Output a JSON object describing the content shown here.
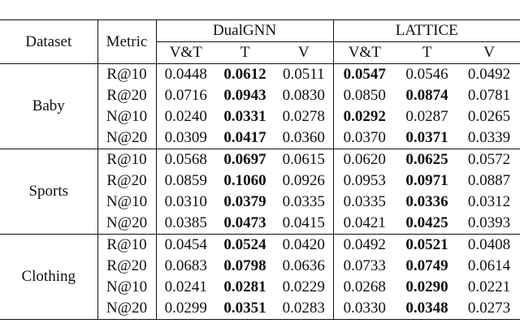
{
  "table": {
    "header": {
      "dataset": "Dataset",
      "metric": "Metric",
      "models": [
        {
          "name": "DualGNN",
          "columns": [
            "V&T",
            "T",
            "V"
          ]
        },
        {
          "name": "LATTICE",
          "columns": [
            "V&T",
            "T",
            "V"
          ]
        }
      ]
    },
    "groups": [
      {
        "dataset": "Baby",
        "rows": [
          {
            "metric": "R@10",
            "values": [
              "0.0448",
              "0.0612",
              "0.0511",
              "0.0547",
              "0.0546",
              "0.0492"
            ],
            "bold": [
              1,
              3
            ]
          },
          {
            "metric": "R@20",
            "values": [
              "0.0716",
              "0.0943",
              "0.0830",
              "0.0850",
              "0.0874",
              "0.0781"
            ],
            "bold": [
              1,
              4
            ]
          },
          {
            "metric": "N@10",
            "values": [
              "0.0240",
              "0.0331",
              "0.0278",
              "0.0292",
              "0.0287",
              "0.0265"
            ],
            "bold": [
              1,
              3
            ]
          },
          {
            "metric": "N@20",
            "values": [
              "0.0309",
              "0.0417",
              "0.0360",
              "0.0370",
              "0.0371",
              "0.0339"
            ],
            "bold": [
              1,
              4
            ]
          }
        ]
      },
      {
        "dataset": "Sports",
        "rows": [
          {
            "metric": "R@10",
            "values": [
              "0.0568",
              "0.0697",
              "0.0615",
              "0.0620",
              "0.0625",
              "0.0572"
            ],
            "bold": [
              1,
              4
            ]
          },
          {
            "metric": "R@20",
            "values": [
              "0.0859",
              "0.1060",
              "0.0926",
              "0.0953",
              "0.0971",
              "0.0887"
            ],
            "bold": [
              1,
              4
            ]
          },
          {
            "metric": "N@10",
            "values": [
              "0.0310",
              "0.0379",
              "0.0335",
              "0.0335",
              "0.0336",
              "0.0312"
            ],
            "bold": [
              1,
              4
            ]
          },
          {
            "metric": "N@20",
            "values": [
              "0.0385",
              "0.0473",
              "0.0415",
              "0.0421",
              "0.0425",
              "0.0393"
            ],
            "bold": [
              1,
              4
            ]
          }
        ]
      },
      {
        "dataset": "Clothing",
        "rows": [
          {
            "metric": "R@10",
            "values": [
              "0.0454",
              "0.0524",
              "0.0420",
              "0.0492",
              "0.0521",
              "0.0408"
            ],
            "bold": [
              1,
              4
            ]
          },
          {
            "metric": "R@20",
            "values": [
              "0.0683",
              "0.0798",
              "0.0636",
              "0.0733",
              "0.0749",
              "0.0614"
            ],
            "bold": [
              1,
              4
            ]
          },
          {
            "metric": "N@10",
            "values": [
              "0.0241",
              "0.0281",
              "0.0229",
              "0.0268",
              "0.0290",
              "0.0221"
            ],
            "bold": [
              1,
              4
            ]
          },
          {
            "metric": "N@20",
            "values": [
              "0.0299",
              "0.0351",
              "0.0283",
              "0.0330",
              "0.0348",
              "0.0273"
            ],
            "bold": [
              1,
              4
            ]
          }
        ]
      }
    ]
  }
}
